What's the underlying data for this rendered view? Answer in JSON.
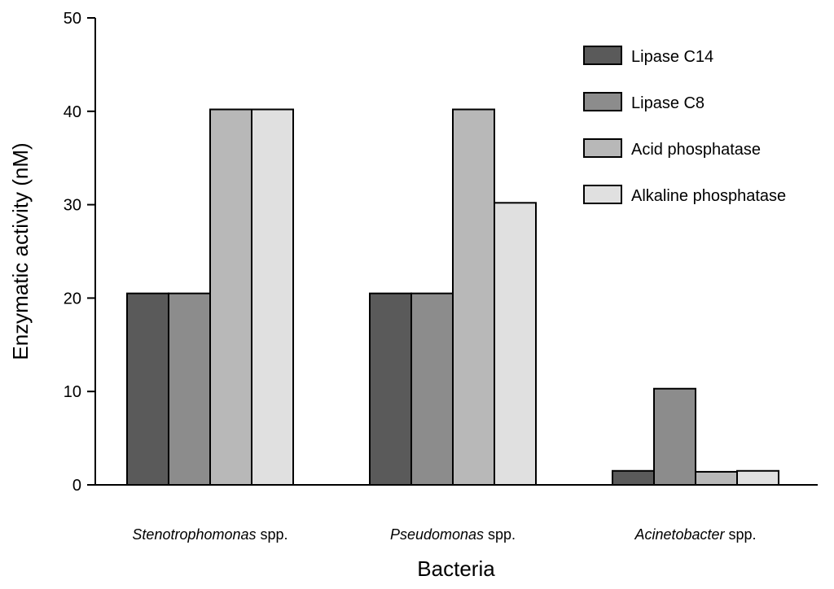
{
  "chart_data": {
    "type": "bar",
    "title": "",
    "xlabel": "Bacteria",
    "ylabel": "Enzymatic activity (nM)",
    "ylim": [
      0,
      50
    ],
    "yticks": [
      0,
      10,
      20,
      30,
      40,
      50
    ],
    "grid": false,
    "legend_position": "top-right",
    "categories": [
      {
        "genus": "Stenotrophomonas",
        "suffix": " spp."
      },
      {
        "genus": "Pseudomonas",
        "suffix": " spp."
      },
      {
        "genus": "Acinetobacter",
        "suffix": " spp."
      }
    ],
    "series": [
      {
        "name": "Lipase C14",
        "color": "#5a5a5a",
        "values": [
          20.5,
          20.5,
          1.5
        ]
      },
      {
        "name": "Lipase C8",
        "color": "#8c8c8c",
        "values": [
          20.5,
          20.5,
          10.3
        ]
      },
      {
        "name": "Acid phosphatase",
        "color": "#b8b8b8",
        "values": [
          40.2,
          40.2,
          1.4
        ]
      },
      {
        "name": "Alkaline phosphatase",
        "color": "#e0e0e0",
        "values": [
          40.2,
          30.2,
          1.5
        ]
      }
    ]
  }
}
